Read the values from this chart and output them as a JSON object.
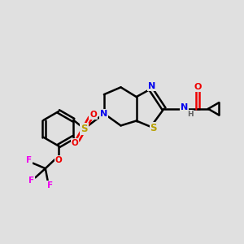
{
  "background_color": "#e0e0e0",
  "bond_color": "#000000",
  "atom_colors": {
    "N": "#0000ee",
    "S": "#b8a000",
    "O": "#ee0000",
    "F": "#ee00ee",
    "H": "#606060",
    "C": "#000000"
  },
  "figsize": [
    3.0,
    3.0
  ],
  "dpi": 100
}
